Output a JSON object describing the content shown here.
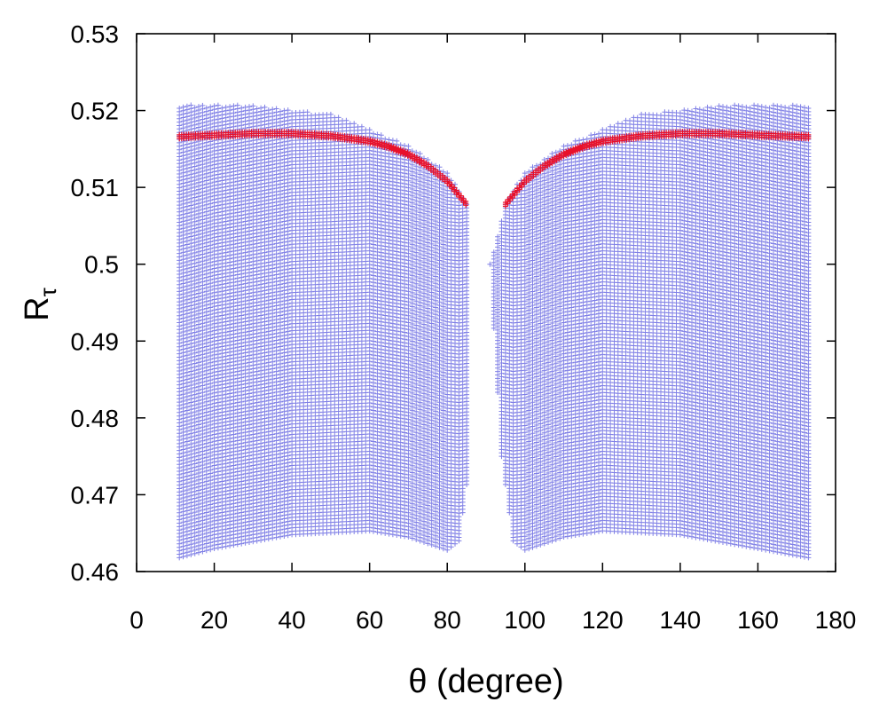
{
  "chart_data": {
    "type": "scatter",
    "xlabel": "θ (degree)",
    "ylabel": {
      "main": "R",
      "sub": "τ"
    },
    "xlim": [
      0,
      180
    ],
    "ylim": [
      0.46,
      0.53
    ],
    "xticks": [
      0,
      20,
      40,
      60,
      80,
      100,
      120,
      140,
      160,
      180
    ],
    "yticks": [
      "0.46",
      "0.47",
      "0.48",
      "0.49",
      "0.5",
      "0.51",
      "0.52",
      "0.53"
    ],
    "grid": false,
    "marker": "+",
    "series": [
      {
        "color": "#8080e6",
        "region": "allowed band",
        "left_branch": {
          "x_range": [
            11,
            85
          ],
          "upper_edge": [
            [
              11,
              0.5207
            ],
            [
              30,
              0.5207
            ],
            [
              50,
              0.5195
            ],
            [
              70,
              0.5155
            ],
            [
              80,
              0.512
            ],
            [
              85,
              0.508
            ],
            [
              89,
              0.5
            ]
          ],
          "lower_edge": [
            [
              11,
              0.4618
            ],
            [
              20,
              0.463
            ],
            [
              40,
              0.4648
            ],
            [
              60,
              0.4653
            ],
            [
              70,
              0.4645
            ],
            [
              80,
              0.4628
            ],
            [
              83,
              0.464
            ],
            [
              86,
              0.475
            ],
            [
              89,
              0.5
            ]
          ]
        },
        "right_branch": {
          "x_range": [
            91,
            173
          ],
          "upper_edge": [
            [
              91,
              0.5
            ],
            [
              95,
              0.508
            ],
            [
              100,
              0.512
            ],
            [
              110,
              0.5155
            ],
            [
              130,
              0.5195
            ],
            [
              150,
              0.5207
            ],
            [
              173,
              0.5207
            ]
          ],
          "lower_edge": [
            [
              91,
              0.5
            ],
            [
              94,
              0.475
            ],
            [
              97,
              0.464
            ],
            [
              100,
              0.4628
            ],
            [
              110,
              0.4645
            ],
            [
              120,
              0.4653
            ],
            [
              140,
              0.4648
            ],
            [
              160,
              0.463
            ],
            [
              173,
              0.4618
            ]
          ]
        }
      },
      {
        "color": "#e8102a",
        "region": "highlighted curve",
        "x": [
          11,
          20,
          30,
          40,
          50,
          60,
          65,
          70,
          75,
          80,
          85,
          95,
          100,
          105,
          110,
          115,
          120,
          130,
          140,
          150,
          160,
          173
        ],
        "y": [
          0.5166,
          0.5168,
          0.517,
          0.517,
          0.5167,
          0.516,
          0.5153,
          0.5143,
          0.5128,
          0.5108,
          0.5078,
          0.5078,
          0.5108,
          0.5128,
          0.5143,
          0.5153,
          0.516,
          0.5167,
          0.517,
          0.517,
          0.5168,
          0.5166
        ]
      }
    ]
  }
}
